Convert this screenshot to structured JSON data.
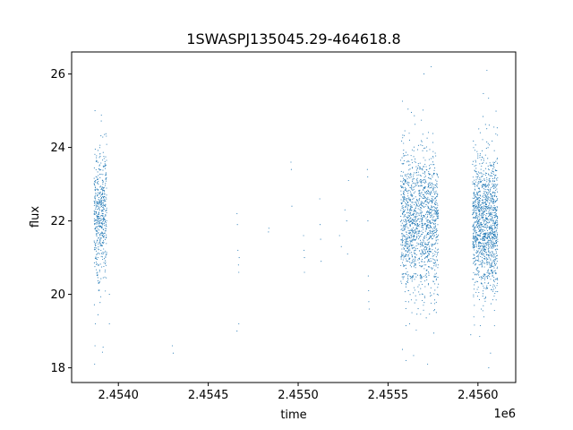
{
  "chart_data": {
    "type": "scatter",
    "title": "1SWASPJ135045.29-464618.8",
    "xlabel": "time",
    "ylabel": "flux",
    "x_offset_label": "1e6",
    "x_scale": 1000000,
    "xlim": [
      2453740,
      2456210
    ],
    "ylim": [
      17.6,
      26.6
    ],
    "xticks": [
      2454000,
      2454500,
      2455000,
      2455500,
      2456000
    ],
    "xtick_labels": [
      "2.4540",
      "2.4545",
      "2.4550",
      "2.4555",
      "2.4560"
    ],
    "yticks": [
      18,
      20,
      22,
      24,
      26
    ],
    "ytick_labels": [
      "18",
      "20",
      "22",
      "24",
      "26"
    ],
    "grid": false,
    "marker_color": "#1f77b4",
    "series": [
      {
        "clusters": [
          {
            "x_range": [
              2453865,
              2453935
            ],
            "y_center": 22.2,
            "y_spread": 0.9,
            "count": 500
          },
          {
            "x_range": [
              2455570,
              2455780
            ],
            "y_center": 22.0,
            "y_spread": 0.95,
            "count": 1400
          },
          {
            "x_range": [
              2455970,
              2456110
            ],
            "y_center": 21.9,
            "y_spread": 0.95,
            "count": 1300
          }
        ],
        "points": [
          [
            2453870,
            25.0
          ],
          [
            2453872,
            19.2
          ],
          [
            2453870,
            18.6
          ],
          [
            2453868,
            18.1
          ],
          [
            2453950,
            20.0
          ],
          [
            2453950,
            19.2
          ],
          [
            2454300,
            18.6
          ],
          [
            2454305,
            18.4
          ],
          [
            2454660,
            22.2
          ],
          [
            2454662,
            21.9
          ],
          [
            2454665,
            21.2
          ],
          [
            2454668,
            20.8
          ],
          [
            2454670,
            20.6
          ],
          [
            2454670,
            19.2
          ],
          [
            2454660,
            19.0
          ],
          [
            2454672,
            21.0
          ],
          [
            2454835,
            21.7
          ],
          [
            2454837,
            21.8
          ],
          [
            2454960,
            23.6
          ],
          [
            2454962,
            23.4
          ],
          [
            2454965,
            22.4
          ],
          [
            2455030,
            21.6
          ],
          [
            2455033,
            21.2
          ],
          [
            2455035,
            21.0
          ],
          [
            2455035,
            20.6
          ],
          [
            2455120,
            22.6
          ],
          [
            2455122,
            21.9
          ],
          [
            2455125,
            21.5
          ],
          [
            2455128,
            20.9
          ],
          [
            2455230,
            21.6
          ],
          [
            2455240,
            21.3
          ],
          [
            2455260,
            22.3
          ],
          [
            2455270,
            22.0
          ],
          [
            2455275,
            21.1
          ],
          [
            2455280,
            23.1
          ],
          [
            2455385,
            23.4
          ],
          [
            2455387,
            23.2
          ],
          [
            2455388,
            22.0
          ],
          [
            2455390,
            20.5
          ],
          [
            2455392,
            20.1
          ],
          [
            2455393,
            19.8
          ],
          [
            2455395,
            19.6
          ],
          [
            2455580,
            18.5
          ],
          [
            2455600,
            18.2
          ],
          [
            2455620,
            19.2
          ],
          [
            2455700,
            26.0
          ],
          [
            2455720,
            18.1
          ],
          [
            2455740,
            26.2
          ],
          [
            2455960,
            18.9
          ],
          [
            2455980,
            19.7
          ],
          [
            2456050,
            26.1
          ],
          [
            2456060,
            18.0
          ],
          [
            2456070,
            18.4
          ]
        ]
      }
    ]
  }
}
